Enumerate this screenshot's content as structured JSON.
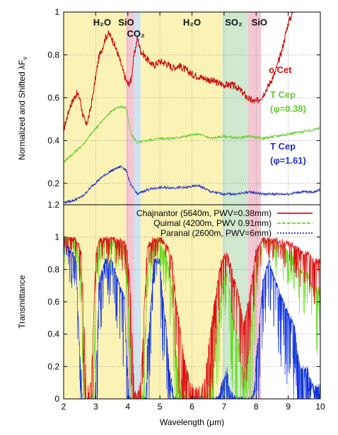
{
  "chart_data": [
    {
      "type": "line",
      "ylabel": "Normalized and Shifted λF",
      "ylabel_sub": "ν",
      "xlim": [
        2,
        10
      ],
      "ylim": [
        0.1,
        1.0
      ],
      "yticks": [
        "0.2",
        "0.4",
        "0.6",
        "0.8",
        "1"
      ],
      "grid": true,
      "bands": [
        {
          "from": 2.0,
          "to": 3.95,
          "color": "#fbf3b6"
        },
        {
          "from": 3.95,
          "to": 4.2,
          "color": "#f4c7d2"
        },
        {
          "from": 4.2,
          "to": 4.4,
          "color": "#cfe3f2"
        },
        {
          "from": 4.4,
          "to": 6.95,
          "color": "#fbf3b6"
        },
        {
          "from": 6.95,
          "to": 7.75,
          "color": "#cfe8cf"
        },
        {
          "from": 7.75,
          "to": 8.15,
          "color": "#f4c7d2"
        },
        {
          "from": 8.15,
          "to": 10.0,
          "color": "#ffffff"
        }
      ],
      "band_labels": [
        {
          "name": "H₂O",
          "x": 3.2,
          "row": 0
        },
        {
          "name": "SiO",
          "x": 3.95,
          "row": 0
        },
        {
          "name": "CO₂",
          "x": 4.25,
          "row": 1
        },
        {
          "name": "H₂O",
          "x": 6.0,
          "row": 0
        },
        {
          "name": "SO₂",
          "x": 7.3,
          "row": 0
        },
        {
          "name": "SiO",
          "x": 8.1,
          "row": 0
        }
      ],
      "series": [
        {
          "name": "o Cet",
          "color": "#cc1111",
          "x": [
            2.0,
            2.2,
            2.4,
            2.5,
            2.6,
            2.7,
            2.8,
            2.9,
            3.0,
            3.1,
            3.2,
            3.3,
            3.4,
            3.5,
            3.6,
            3.7,
            3.8,
            3.9,
            4.0,
            4.1,
            4.2,
            4.3,
            4.4,
            4.6,
            4.8,
            5.0,
            5.2,
            5.4,
            5.6,
            5.8,
            6.0,
            6.2,
            6.4,
            6.6,
            6.8,
            7.0,
            7.2,
            7.4,
            7.6,
            7.8,
            8.0,
            8.2,
            8.4,
            8.6,
            8.8,
            9.0,
            9.2
          ],
          "values": [
            0.45,
            0.56,
            0.62,
            0.6,
            0.52,
            0.47,
            0.52,
            0.6,
            0.7,
            0.79,
            0.83,
            0.88,
            0.9,
            0.88,
            0.84,
            0.8,
            0.75,
            0.7,
            0.66,
            0.68,
            0.8,
            0.88,
            0.82,
            0.78,
            0.75,
            0.77,
            0.76,
            0.74,
            0.75,
            0.73,
            0.71,
            0.7,
            0.69,
            0.68,
            0.67,
            0.66,
            0.66,
            0.65,
            0.62,
            0.59,
            0.58,
            0.61,
            0.66,
            0.72,
            0.82,
            0.95,
            1.02
          ]
        },
        {
          "name": "T Cep",
          "name2": "(φ=0.38)",
          "color": "#66cc33",
          "x": [
            2.0,
            2.3,
            2.6,
            2.9,
            3.2,
            3.5,
            3.8,
            3.95,
            4.1,
            4.3,
            4.6,
            5.0,
            5.4,
            5.8,
            6.2,
            6.6,
            7.0,
            7.4,
            7.8,
            8.2,
            8.6,
            9.0,
            9.4,
            9.8,
            10.0
          ],
          "values": [
            0.3,
            0.34,
            0.38,
            0.44,
            0.49,
            0.54,
            0.56,
            0.55,
            0.43,
            0.39,
            0.4,
            0.41,
            0.41,
            0.42,
            0.43,
            0.41,
            0.42,
            0.41,
            0.42,
            0.41,
            0.42,
            0.43,
            0.44,
            0.45,
            0.46
          ]
        },
        {
          "name": "T Cep",
          "name2": "(φ=1.61)",
          "color": "#2233bb",
          "x": [
            2.0,
            2.3,
            2.6,
            2.9,
            3.2,
            3.5,
            3.8,
            3.95,
            4.1,
            4.3,
            4.6,
            5.0,
            5.4,
            5.8,
            6.2,
            6.6,
            7.0,
            7.4,
            7.8,
            8.2,
            8.6,
            9.0,
            9.4,
            9.8,
            10.0
          ],
          "values": [
            0.11,
            0.12,
            0.14,
            0.19,
            0.23,
            0.26,
            0.28,
            0.26,
            0.19,
            0.15,
            0.17,
            0.18,
            0.18,
            0.18,
            0.19,
            0.16,
            0.15,
            0.15,
            0.16,
            0.15,
            0.15,
            0.15,
            0.16,
            0.16,
            0.17
          ]
        }
      ]
    },
    {
      "type": "line",
      "xlabel": "Wavelength (μm)",
      "ylabel": "Transmittance",
      "xlim": [
        2,
        10
      ],
      "ylim": [
        0,
        1.2
      ],
      "xticks": [
        "2",
        "3",
        "4",
        "5",
        "6",
        "7",
        "8",
        "9",
        "10"
      ],
      "yticks": [
        "0",
        "0.2",
        "0.4",
        "0.6",
        "0.8",
        "1",
        "1.2"
      ],
      "grid": true,
      "legend_position": "top-right",
      "series": [
        {
          "name": "Chajnantor (5640m, PWV=0.38mm)",
          "color": "#dd1111"
        },
        {
          "name": "Quimal (4200m, PWV  0.91mm)",
          "color": "#66dd22"
        },
        {
          "name": "Paranal (2600m, PWV=6mm)",
          "color": "#1133dd"
        }
      ],
      "envelope_x": [
        2.0,
        2.4,
        2.55,
        2.7,
        2.8,
        2.9,
        3.0,
        3.1,
        3.3,
        3.5,
        3.7,
        3.9,
        4.0,
        4.1,
        4.2,
        4.3,
        4.4,
        4.5,
        4.6,
        4.8,
        5.0,
        5.2,
        5.4,
        5.5,
        5.7,
        5.8,
        6.0,
        6.2,
        6.4,
        6.5,
        6.7,
        6.9,
        7.1,
        7.3,
        7.5,
        7.6,
        7.8,
        8.0,
        8.2,
        8.4,
        8.6,
        8.8,
        9.0,
        9.2,
        9.4,
        9.6,
        9.8,
        10.0
      ],
      "envelope_t": [
        1.0,
        0.99,
        0.9,
        0.15,
        0.02,
        0.3,
        0.9,
        0.98,
        0.99,
        0.99,
        0.98,
        0.97,
        0.9,
        0.6,
        0.05,
        0.02,
        0.1,
        0.5,
        0.93,
        0.99,
        0.99,
        0.95,
        0.85,
        0.6,
        0.35,
        0.2,
        0.08,
        0.05,
        0.12,
        0.3,
        0.6,
        0.85,
        0.9,
        0.75,
        0.6,
        0.45,
        0.65,
        0.92,
        0.98,
        0.99,
        0.98,
        0.97,
        0.96,
        0.95,
        0.9,
        0.9,
        0.85,
        0.85
      ],
      "scale": {
        "Chajnantor (5640m, PWV=0.38mm)": 1.0,
        "Quimal (4200m, PWV  0.91mm)": 2.4,
        "Paranal (2600m, PWV=6mm)": 15.8
      }
    }
  ]
}
